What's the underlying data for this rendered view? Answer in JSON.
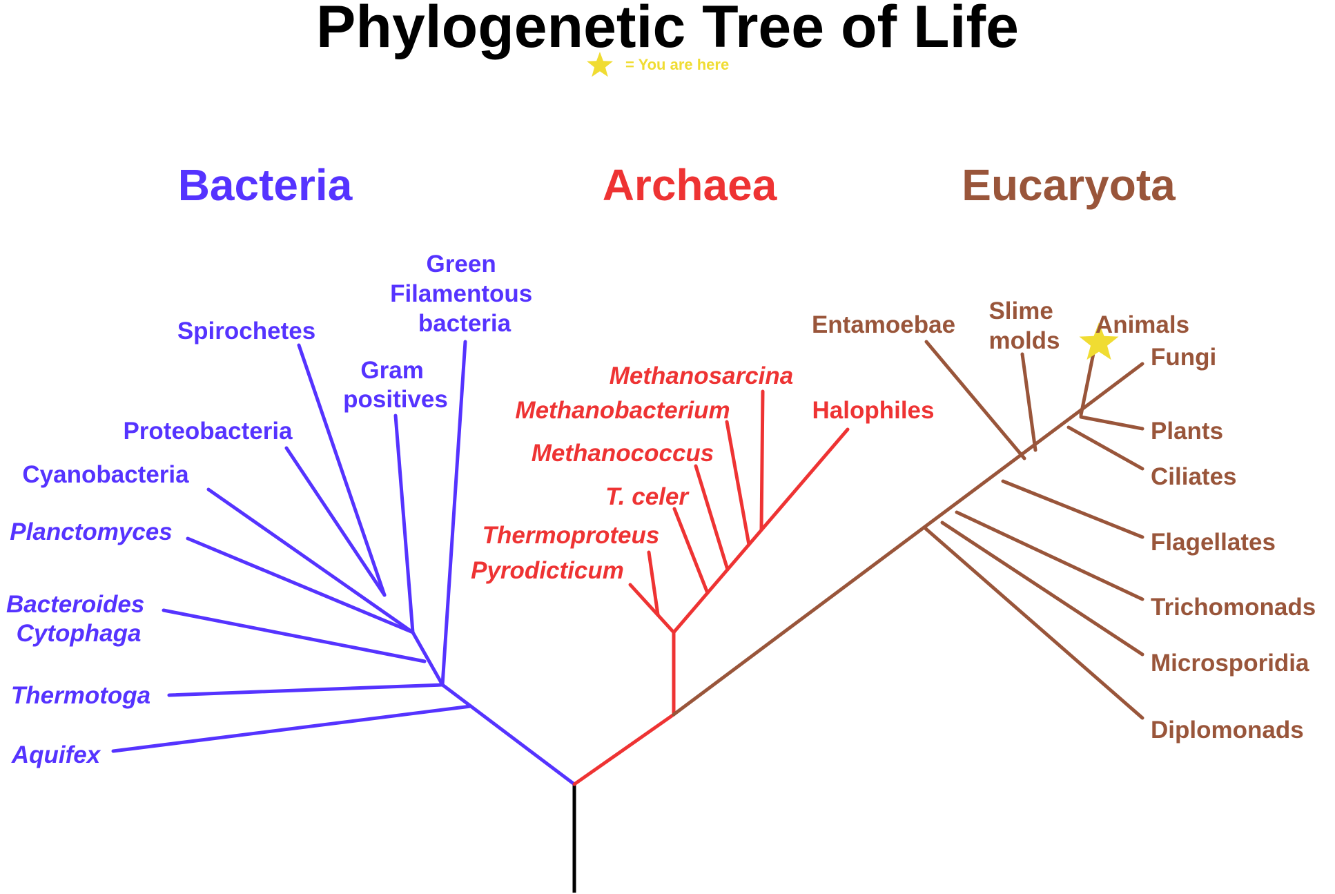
{
  "title": "Phylogenetic Tree of Life",
  "legend": {
    "text": "= You are here",
    "icon": "star-icon"
  },
  "colors": {
    "bacteria": "#5533ff",
    "archaea": "#ee3333",
    "eucaryota": "#99553a",
    "root": "#000000",
    "star": "#f0dc32"
  },
  "domains": {
    "bacteria": "Bacteria",
    "archaea": "Archaea",
    "eucaryota": "Eucaryota"
  },
  "bacteria": {
    "green_filamentous": [
      "Green",
      "Filamentous",
      "bacteria"
    ],
    "spirochetes": "Spirochetes",
    "gram_positives": [
      "Gram",
      "positives"
    ],
    "proteobacteria": "Proteobacteria",
    "cyanobacteria": "Cyanobacteria",
    "planctomyces": "Planctomyces",
    "bacteroides_cytophaga": [
      "Bacteroides",
      "Cytophaga"
    ],
    "thermotoga": "Thermotoga",
    "aquifex": "Aquifex"
  },
  "archaea": {
    "methanosarcina": "Methanosarcina",
    "methanobacterium": "Methanobacterium",
    "halophiles": "Halophiles",
    "methanococcus": "Methanococcus",
    "t_celer": "T. celer",
    "thermoproteus": "Thermoproteus",
    "pyrodicticum": "Pyrodicticum"
  },
  "eucaryota": {
    "entamoebae": "Entamoebae",
    "slime_molds": [
      "Slime",
      "molds"
    ],
    "animals": "Animals",
    "fungi": "Fungi",
    "plants": "Plants",
    "ciliates": "Ciliates",
    "flagellates": "Flagellates",
    "trichomonads": "Trichomonads",
    "microsporidia": "Microsporidia",
    "diplomonads": "Diplomonads"
  }
}
